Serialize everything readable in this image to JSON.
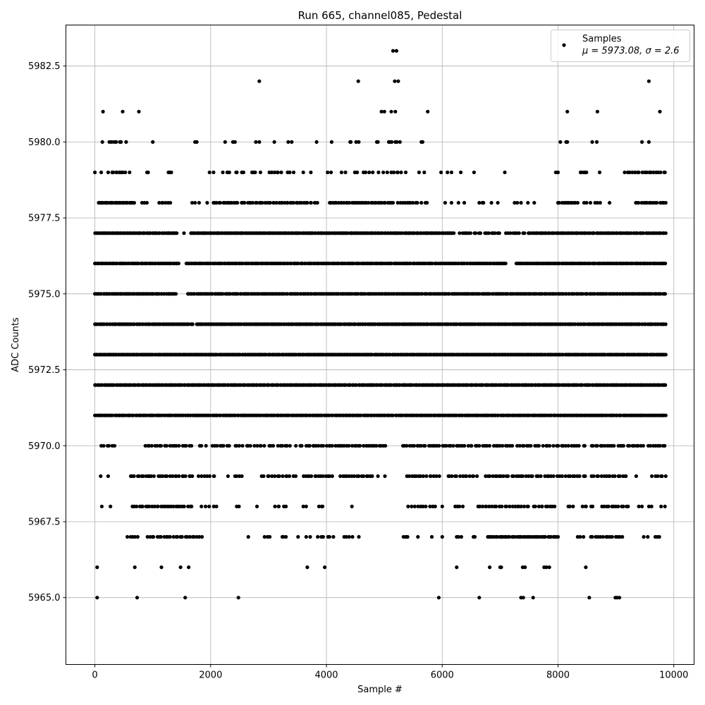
{
  "chart_data": {
    "type": "scatter",
    "title": "Run 665, channel085, Pedestal",
    "xlabel": "Sample #",
    "ylabel": "ADC Counts",
    "xlim": [
      -500,
      10350
    ],
    "ylim": [
      5962.8,
      5983.85
    ],
    "xticks": [
      0,
      2000,
      4000,
      6000,
      8000,
      10000
    ],
    "xtick_labels": [
      "0",
      "2000",
      "4000",
      "6000",
      "8000",
      "10000"
    ],
    "yticks": [
      5965.0,
      5967.5,
      5970.0,
      5972.5,
      5975.0,
      5977.5,
      5980.0,
      5982.5
    ],
    "ytick_labels": [
      "5965.0",
      "5967.5",
      "5970.0",
      "5972.5",
      "5975.0",
      "5977.5",
      "5980.0",
      "5982.5"
    ],
    "grid": true,
    "legend_position": "top-right",
    "marker_color": "#000000",
    "sample_count": 9860,
    "series": [
      {
        "name": "Samples",
        "stats_label": "μ = 5973.08, σ = 2.6",
        "mean": 5973.08,
        "std": 2.6,
        "bands": [
          {
            "y": 5965,
            "x": [
              40,
              730,
              1560,
              2480,
              5940,
              6640,
              7360,
              7400,
              7570,
              8540,
              8990,
              9020,
              9060
            ]
          },
          {
            "y": 5966,
            "x": [
              40,
              690,
              1150,
              1480,
              1620,
              3670,
              3970,
              6250,
              6820,
              7000,
              7020,
              7390,
              7430,
              7760,
              7800,
              7850,
              8480
            ]
          },
          {
            "y": 5967,
            "x": [
              [
                550,
                760,
                5
              ],
              [
                900,
                1850,
                24
              ],
              2650,
              [
                2930,
                3020,
                3
              ],
              [
                3230,
                3300,
                3
              ],
              3510,
              [
                3650,
                3720,
                2
              ],
              [
                3850,
                4120,
                6
              ],
              [
                4300,
                4450,
                4
              ],
              4560,
              [
                5330,
                5420,
                3
              ],
              5580,
              5820,
              6000,
              [
                6250,
                6350,
                3
              ],
              [
                6510,
                6580,
                2
              ],
              [
                6780,
                8000,
                42
              ],
              [
                8340,
                8440,
                3
              ],
              [
                8550,
                9120,
                14
              ],
              [
                9480,
                9550,
                2
              ],
              [
                9680,
                9760,
                3
              ]
            ]
          },
          {
            "y": 5968,
            "x": [
              120,
              270,
              [
                650,
                1670,
                28
              ],
              [
                1840,
                2100,
                5
              ],
              2450,
              2490,
              2800,
              [
                3100,
                3300,
                5
              ],
              [
                3600,
                3680,
                2
              ],
              [
                3870,
                3950,
                3
              ],
              4440,
              [
                5410,
                5900,
                10
              ],
              6000,
              [
                6220,
                6360,
                4
              ],
              [
                6610,
                7500,
                22
              ],
              [
                7580,
                7950,
                10
              ],
              [
                8160,
                8260,
                3
              ],
              [
                8410,
                8600,
                5
              ],
              [
                8760,
                9210,
                12
              ],
              [
                9380,
                9460,
                2
              ],
              [
                9570,
                9650,
                2
              ],
              [
                9780,
                9860,
                2
              ]
            ]
          },
          {
            "y": 5969,
            "x": [
              100,
              230,
              [
                620,
                1020,
                12
              ],
              [
                1100,
                1700,
                16
              ],
              [
                1790,
                2080,
                7
              ],
              2300,
              [
                2420,
                2550,
                4
              ],
              [
                2880,
                3470,
                14
              ],
              [
                3600,
                4100,
                14
              ],
              [
                4240,
                4800,
                15
              ],
              4890,
              5010,
              [
                5380,
                5950,
                14
              ],
              [
                6090,
                6600,
                13
              ],
              [
                6750,
                7150,
                11
              ],
              [
                7210,
                7560,
                10
              ],
              [
                7630,
                8070,
                11
              ],
              [
                8120,
                8470,
                9
              ],
              [
                8580,
                9190,
                16
              ],
              9350,
              [
                9620,
                9860,
                6
              ]
            ]
          },
          {
            "y": 5970,
            "x": [
              [
                110,
                340,
                6
              ],
              [
                870,
                1240,
                10
              ],
              [
                1300,
                1670,
                10
              ],
              [
                1800,
                1920,
                3
              ],
              [
                2030,
                2320,
                8
              ],
              [
                2410,
                2550,
                4
              ],
              [
                2610,
                2930,
                8
              ],
              [
                3010,
                3370,
                9
              ],
              [
                3470,
                3600,
                3
              ],
              [
                3640,
                5030,
                36
              ],
              [
                5320,
                6640,
                34
              ],
              [
                6700,
                7220,
                13
              ],
              [
                7290,
                7670,
                10
              ],
              [
                7740,
                8180,
                11
              ],
              [
                8230,
                8480,
                6
              ],
              [
                8570,
                9480,
                23
              ],
              [
                9560,
                9860,
                8
              ]
            ]
          },
          {
            "y": 5971,
            "x": [
              [
                0,
                5150,
                200
              ],
              [
                5200,
                9860,
                190
              ]
            ]
          },
          {
            "y": 5972,
            "x": [
              [
                0,
                9860,
                380
              ]
            ]
          },
          {
            "y": 5973,
            "x": [
              [
                0,
                9860,
                420
              ]
            ]
          },
          {
            "y": 5974,
            "x": [
              [
                0,
                1700,
                70
              ],
              [
                1750,
                9860,
                330
              ]
            ]
          },
          {
            "y": 5975,
            "x": [
              [
                0,
                1400,
                60
              ],
              [
                1600,
                9860,
                320
              ]
            ]
          },
          {
            "y": 5976,
            "x": [
              [
                0,
                1450,
                60
              ],
              [
                1580,
                7100,
                220
              ],
              [
                7280,
                9860,
                110
              ]
            ]
          },
          {
            "y": 5977,
            "x": [
              [
                0,
                1420,
                60
              ],
              1540,
              [
                1660,
                6200,
                190
              ],
              [
                6300,
                6660,
                10
              ],
              [
                6740,
                7000,
                8
              ],
              [
                7100,
                7420,
                9
              ],
              [
                7480,
                9860,
                90
              ]
            ]
          },
          {
            "y": 5978,
            "x": [
              [
                60,
                680,
                30
              ],
              [
                810,
                900,
                3
              ],
              [
                1100,
                1320,
                6
              ],
              [
                1680,
                1800,
                3
              ],
              1940,
              [
                2050,
                2470,
                14
              ],
              [
                2530,
                3850,
                40
              ],
              [
                4050,
                5150,
                35
              ],
              [
                5230,
                5580,
                10
              ],
              [
                5640,
                5750,
                3
              ],
              6050,
              6160,
              6280,
              6380,
              [
                6640,
                6730,
                3
              ],
              6850,
              6960,
              [
                7250,
                7360,
                3
              ],
              7480,
              7590,
              [
                8000,
                8340,
                12
              ],
              [
                8450,
                8560,
                3
              ],
              [
                8640,
                8740,
                3
              ],
              8890,
              [
                9330,
                9860,
                16
              ]
            ]
          },
          {
            "y": 5979,
            "x": [
              0,
              110,
              230,
              [
                290,
                530,
                8
              ],
              600,
              900,
              920,
              [
                1270,
                1320,
                3
              ],
              [
                1950,
                2050,
                2
              ],
              [
                2210,
                2330,
                3
              ],
              [
                2420,
                2590,
                4
              ],
              [
                2700,
                2770,
                3
              ],
              2860,
              [
                3000,
                3220,
                6
              ],
              [
                3320,
                3450,
                3
              ],
              3600,
              3730,
              [
                4020,
                4090,
                2
              ],
              [
                4260,
                4340,
                2
              ],
              [
                4470,
                4530,
                2
              ],
              [
                4640,
                4800,
                4
              ],
              [
                4900,
                5020,
                2
              ],
              5050,
              [
                5120,
                5290,
                5
              ],
              5370,
              5600,
              5690,
              5980,
              6090,
              6160,
              6320,
              6550,
              7080,
              [
                7950,
                8000,
                2
              ],
              [
                8380,
                8490,
                5
              ],
              8720,
              [
                9150,
                9860,
                18
              ]
            ]
          },
          {
            "y": 5980,
            "x": [
              130,
              [
                250,
                460,
                6
              ],
              540,
              1000,
              1730,
              1760,
              2250,
              [
                2380,
                2420,
                2
              ],
              2780,
              2840,
              3100,
              3340,
              3400,
              3830,
              4090,
              [
                4390,
                4560,
                4
              ],
              4870,
              4890,
              [
                5060,
                5270,
                6
              ],
              5640,
              5660,
              8040,
              8140,
              8160,
              8590,
              8670,
              9450,
              9570
            ]
          },
          {
            "y": 5981,
            "x": [
              140,
              480,
              760,
              4950,
              5000,
              5120,
              5190,
              5750,
              8160,
              8680,
              9760
            ]
          },
          {
            "y": 5982,
            "x": [
              2840,
              4550,
              5180,
              5240,
              9570
            ]
          },
          {
            "y": 5983,
            "x": [
              5150,
              5210
            ]
          }
        ]
      }
    ]
  }
}
